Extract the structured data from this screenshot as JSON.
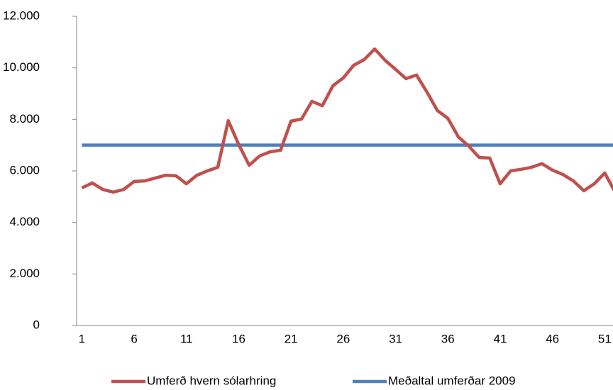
{
  "chart_data": {
    "type": "line",
    "categories": [
      "1",
      null,
      null,
      null,
      null,
      "6",
      null,
      null,
      null,
      null,
      "11",
      null,
      null,
      null,
      null,
      "16",
      null,
      null,
      null,
      null,
      "21",
      null,
      null,
      null,
      null,
      "26",
      null,
      null,
      null,
      null,
      "31",
      null,
      null,
      null,
      null,
      "36",
      null,
      null,
      null,
      null,
      "41",
      null,
      null,
      null,
      null,
      "46",
      null,
      null,
      null,
      null,
      "51",
      null
    ],
    "series": [
      {
        "name": "Umferð hvern sólarhring",
        "color": "#c0504d",
        "values": [
          5340,
          5530,
          5280,
          5175,
          5280,
          5590,
          5610,
          5720,
          5830,
          5810,
          5500,
          5830,
          6000,
          6140,
          7950,
          7020,
          6220,
          6580,
          6740,
          6800,
          7930,
          8010,
          8700,
          8530,
          9300,
          9610,
          10100,
          10320,
          10730,
          10290,
          9940,
          9580,
          9720,
          9060,
          8340,
          8040,
          7320,
          6960,
          6520,
          6500,
          5500,
          6000,
          6060,
          6140,
          6280,
          6030,
          5860,
          5610,
          5230,
          5500,
          5920,
          5170
        ]
      },
      {
        "name": "Meðaltal umferðar 2009",
        "color": "#4f81bd",
        "values": [
          7000,
          7000,
          7000,
          7000,
          7000,
          7000,
          7000,
          7000,
          7000,
          7000,
          7000,
          7000,
          7000,
          7000,
          7000,
          7000,
          7000,
          7000,
          7000,
          7000,
          7000,
          7000,
          7000,
          7000,
          7000,
          7000,
          7000,
          7000,
          7000,
          7000,
          7000,
          7000,
          7000,
          7000,
          7000,
          7000,
          7000,
          7000,
          7000,
          7000,
          7000,
          7000,
          7000,
          7000,
          7000,
          7000,
          7000,
          7000,
          7000,
          7000,
          7000,
          7000
        ]
      }
    ],
    "ylim": [
      0,
      12000
    ],
    "yticks": [
      0,
      {
        "value": 2000,
        "label": "2.000"
      },
      {
        "value": 4000,
        "label": "4.000"
      },
      {
        "value": 6000,
        "label": "6.000"
      },
      {
        "value": 8000,
        "label": "8.000"
      },
      {
        "value": 10000,
        "label": "10.000"
      },
      {
        "value": 12000,
        "label": "12.000"
      }
    ],
    "legend": "bottom"
  }
}
